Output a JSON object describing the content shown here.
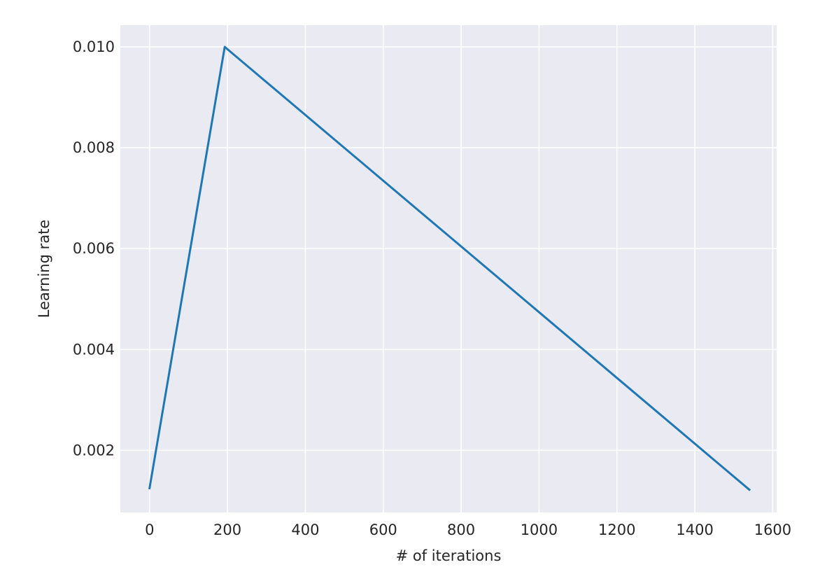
{
  "chart_data": {
    "type": "line",
    "title": "",
    "xlabel": "# of iterations",
    "ylabel": "Learning rate",
    "x_ticks": [
      0,
      200,
      400,
      600,
      800,
      1000,
      1200,
      1400,
      1600
    ],
    "x_tick_labels": [
      "0",
      "200",
      "400",
      "600",
      "800",
      "1000",
      "1200",
      "1400",
      "1600"
    ],
    "y_ticks": [
      0.002,
      0.004,
      0.006,
      0.008,
      0.01
    ],
    "y_tick_labels": [
      "0.002",
      "0.004",
      "0.006",
      "0.008",
      "0.010"
    ],
    "xlim": [
      -75,
      1610
    ],
    "ylim": [
      0.00077,
      0.01043
    ],
    "grid": true,
    "background_color": "#eaeaf2",
    "grid_color": "#ffffff",
    "series": [
      {
        "color": "#1f77b4",
        "x": [
          0,
          193,
          1540
        ],
        "y": [
          0.00125,
          0.01,
          0.00122
        ]
      }
    ]
  }
}
